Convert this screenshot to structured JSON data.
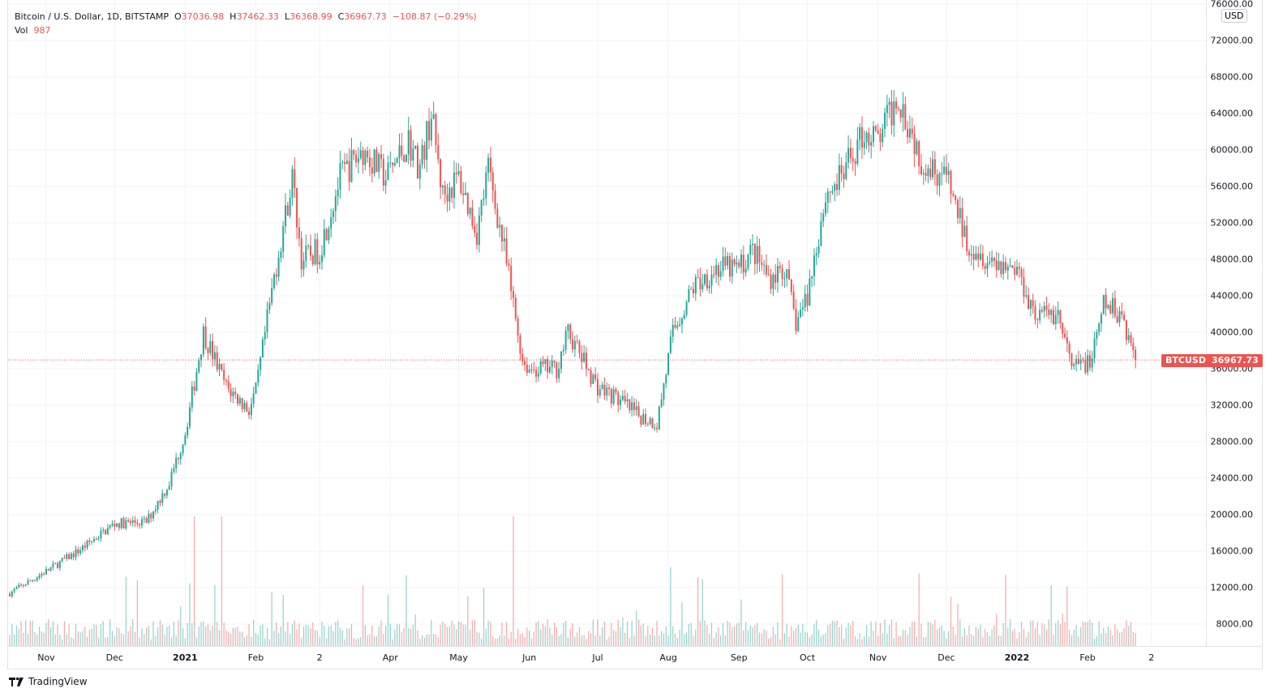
{
  "legend": {
    "title": "Bitcoin / U.S. Dollar, 1D, BITSTAMP",
    "o_label": "O",
    "open": "37036.98",
    "h_label": "H",
    "high": "37462.33",
    "l_label": "L",
    "low": "36368.99",
    "c_label": "C",
    "close": "36967.73",
    "change": "−108.87 (−0.29%)",
    "vol_label": "Vol",
    "vol": "987"
  },
  "currency": "USD",
  "symbol_tag": "BTCUSD",
  "last_price": "36967.73",
  "price_axis": [
    "76000.00",
    "72000.00",
    "68000.00",
    "64000.00",
    "60000.00",
    "56000.00",
    "52000.00",
    "48000.00",
    "44000.00",
    "40000.00",
    "36000.00",
    "32000.00",
    "28000.00",
    "24000.00",
    "20000.00",
    "16000.00",
    "12000.00",
    "8000.00"
  ],
  "time_axis": [
    {
      "label": "Nov",
      "day": 16
    },
    {
      "label": "Dec",
      "day": 46
    },
    {
      "label": "2021",
      "day": 77,
      "bold": true
    },
    {
      "label": "Feb",
      "day": 108
    },
    {
      "label": "2",
      "day": 136
    },
    {
      "label": "Apr",
      "day": 167
    },
    {
      "label": "May",
      "day": 197
    },
    {
      "label": "Jun",
      "day": 228
    },
    {
      "label": "Jul",
      "day": 258
    },
    {
      "label": "Aug",
      "day": 289
    },
    {
      "label": "Sep",
      "day": 320
    },
    {
      "label": "Oct",
      "day": 350
    },
    {
      "label": "Nov",
      "day": 381
    },
    {
      "label": "Dec",
      "day": 411
    },
    {
      "label": "2022",
      "day": 442,
      "bold": true
    },
    {
      "label": "Feb",
      "day": 473
    },
    {
      "label": "2",
      "day": 501
    }
  ],
  "brand": "TradingView",
  "colors": {
    "up": "#26a69a",
    "down": "#ef5350"
  },
  "chart_data": {
    "type": "candlestick",
    "symbol": "BTCUSD",
    "interval": "1D",
    "ylim": [
      6000,
      76000
    ],
    "close_anchors": [
      [
        0,
        11400
      ],
      [
        16,
        13800
      ],
      [
        30,
        16000
      ],
      [
        46,
        19000
      ],
      [
        60,
        19200
      ],
      [
        70,
        23500
      ],
      [
        77,
        29000
      ],
      [
        85,
        40000
      ],
      [
        95,
        34000
      ],
      [
        105,
        31500
      ],
      [
        108,
        33500
      ],
      [
        116,
        46000
      ],
      [
        124,
        57000
      ],
      [
        128,
        48000
      ],
      [
        136,
        49000
      ],
      [
        145,
        57000
      ],
      [
        155,
        60000
      ],
      [
        165,
        57000
      ],
      [
        175,
        61000
      ],
      [
        180,
        58000
      ],
      [
        185,
        64000
      ],
      [
        190,
        55000
      ],
      [
        197,
        57000
      ],
      [
        205,
        51000
      ],
      [
        210,
        58000
      ],
      [
        217,
        49000
      ],
      [
        225,
        37000
      ],
      [
        228,
        36000
      ],
      [
        240,
        36000
      ],
      [
        245,
        40000
      ],
      [
        258,
        34000
      ],
      [
        265,
        33000
      ],
      [
        275,
        31000
      ],
      [
        284,
        30000
      ],
      [
        291,
        40000
      ],
      [
        300,
        45000
      ],
      [
        310,
        47000
      ],
      [
        320,
        47000
      ],
      [
        326,
        49000
      ],
      [
        333,
        46000
      ],
      [
        340,
        47000
      ],
      [
        345,
        41000
      ],
      [
        350,
        44000
      ],
      [
        358,
        55000
      ],
      [
        365,
        57000
      ],
      [
        375,
        62000
      ],
      [
        381,
        61000
      ],
      [
        390,
        66000
      ],
      [
        400,
        59000
      ],
      [
        411,
        57000
      ],
      [
        420,
        50000
      ],
      [
        430,
        48000
      ],
      [
        442,
        47000
      ],
      [
        450,
        42000
      ],
      [
        460,
        42000
      ],
      [
        466,
        36000
      ],
      [
        475,
        37000
      ],
      [
        480,
        43000
      ],
      [
        488,
        42000
      ],
      [
        494,
        36967.73
      ]
    ]
  }
}
